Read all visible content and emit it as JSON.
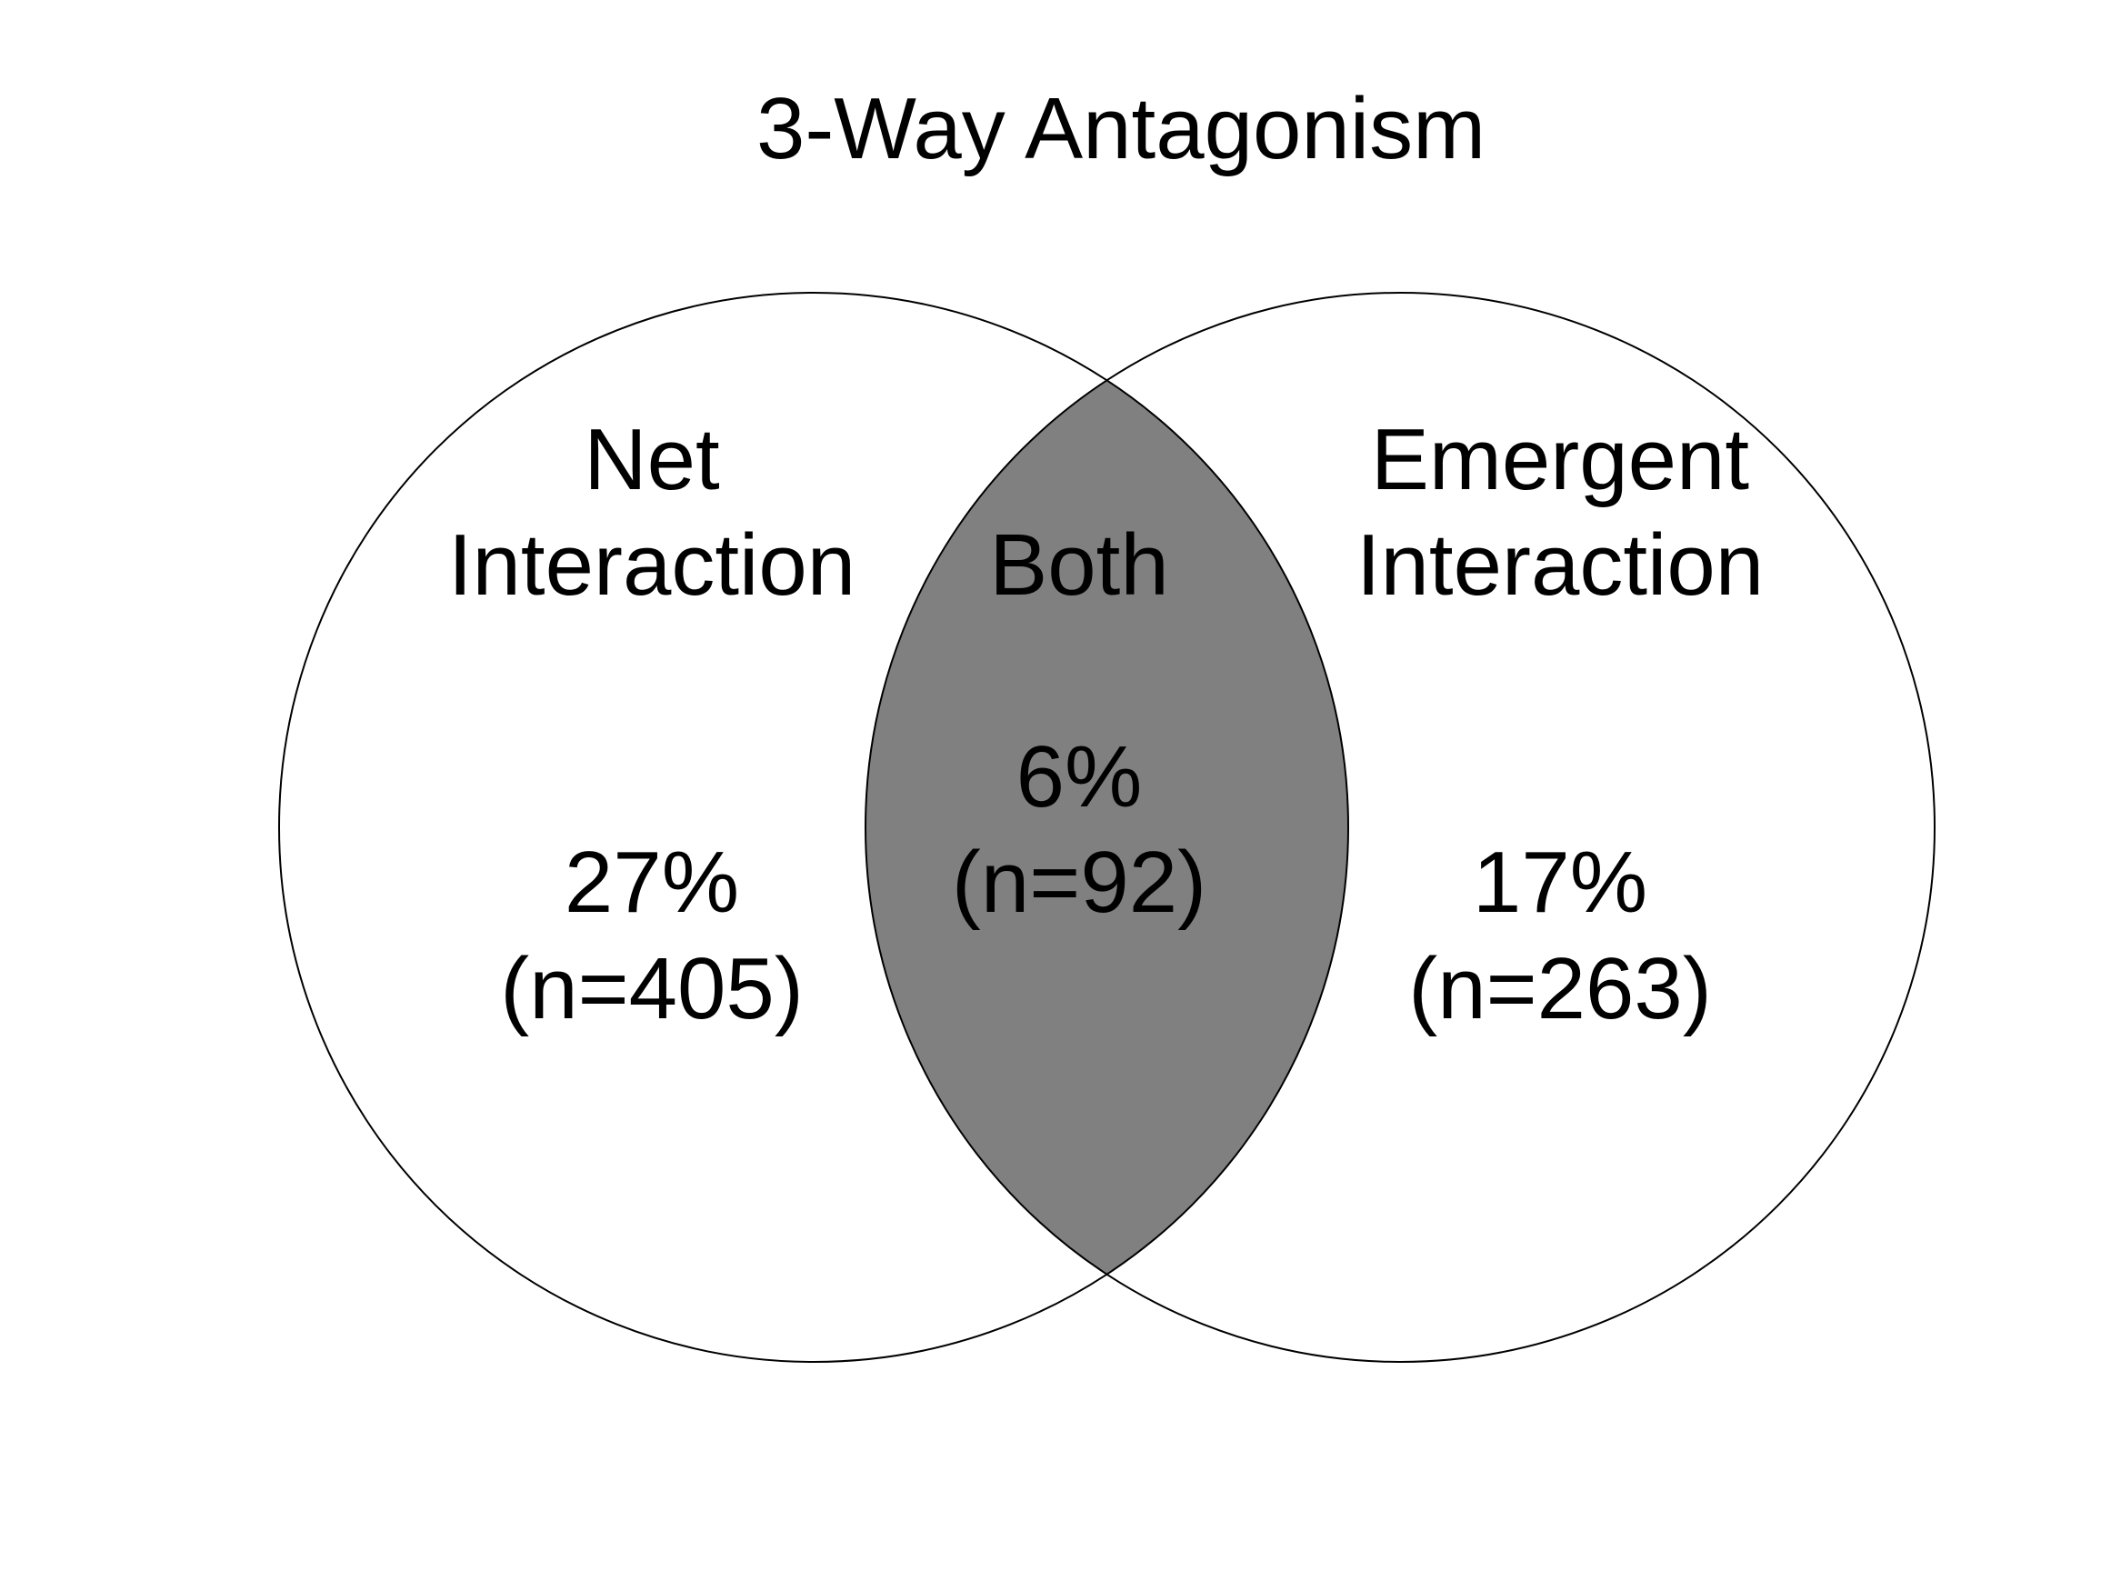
{
  "title": "3-Way Antagonism",
  "colors": {
    "overlap_fill": "#808080",
    "circle_stroke": "#000000",
    "circle_fill": "#ffffff",
    "text": "#000000"
  },
  "sets": {
    "left": {
      "label_line1": "Net",
      "label_line2": "Interaction",
      "percent": "27%",
      "count": "(n=405)"
    },
    "both": {
      "label": "Both",
      "percent": "6%",
      "count": "(n=92)"
    },
    "right": {
      "label_line1": "Emergent",
      "label_line2": "Interaction",
      "percent": "17%",
      "count": "(n=263)"
    }
  }
}
